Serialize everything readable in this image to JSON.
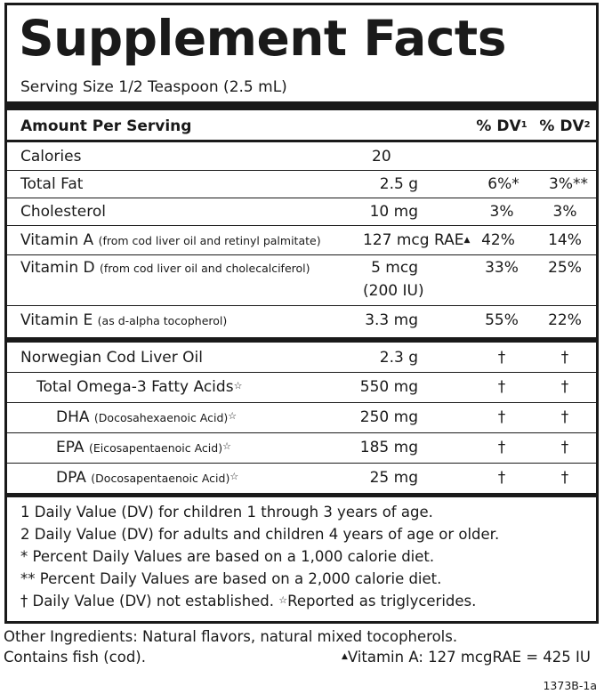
{
  "title": "Supplement Facts",
  "serving_size": "Serving Size 1/2 Teaspoon (2.5 mL)",
  "header": {
    "amount_per_serving": "Amount Per Serving",
    "dv1": "% DV",
    "dv1_sup": "1",
    "dv2": "% DV",
    "dv2_sup": "2"
  },
  "nutrients": [
    {
      "name": "Calories",
      "source": "",
      "amount": "20",
      "amount_line2": "",
      "dv1": "",
      "dv2": ""
    },
    {
      "name": "Total Fat",
      "source": "",
      "amount": "2.5 g",
      "amount_line2": "",
      "dv1": "6%*",
      "dv2": "3%**"
    },
    {
      "name": "Cholesterol",
      "source": "",
      "amount": "10 mg",
      "amount_line2": "",
      "dv1": "3%",
      "dv2": "3%"
    },
    {
      "name": "Vitamin A",
      "source": "(from cod liver oil and retinyl palmitate)",
      "amount": "127 mcg RAE",
      "amount_mark": "▲",
      "amount_line2": "",
      "dv1": "42%",
      "dv2": "14%"
    },
    {
      "name": "Vitamin D",
      "source": "(from cod liver oil and cholecalciferol)",
      "amount": "5 mcg",
      "amount_line2": "(200 IU)",
      "dv1": "33%",
      "dv2": "25%"
    },
    {
      "name": "Vitamin E",
      "source": "(as d-alpha tocopherol)",
      "amount": "3.3 mg",
      "amount_line2": "",
      "dv1": "55%",
      "dv2": "22%"
    }
  ],
  "oils": [
    {
      "name": "Norwegian Cod Liver Oil",
      "source": "",
      "star": "",
      "amount": "2.3 g",
      "dv1": "†",
      "dv2": "†"
    },
    {
      "name": "Total Omega-3 Fatty Acids",
      "source": "",
      "star": "☆",
      "amount": "550 mg",
      "dv1": "†",
      "dv2": "†"
    },
    {
      "name": "DHA",
      "source": "(Docosahexaenoic Acid)",
      "star": "☆",
      "amount": "250 mg",
      "dv1": "†",
      "dv2": "†"
    },
    {
      "name": "EPA",
      "source": "(Eicosapentaenoic Acid)",
      "star": "☆",
      "amount": "185 mg",
      "dv1": "†",
      "dv2": "†"
    },
    {
      "name": "DPA",
      "source": "(Docosapentaenoic Acid)",
      "star": "☆",
      "amount": "25 mg",
      "dv1": "†",
      "dv2": "†"
    }
  ],
  "footnotes": [
    "1 Daily Value (DV) for children 1 through 3 years of age.",
    "2 Daily Value (DV) for adults and children 4 years of age or older.",
    "* Percent Daily Values are based on a 1,000 calorie diet.",
    "** Percent Daily Values are based on a 2,000 calorie diet.",
    "† Daily Value (DV) not established."
  ],
  "triglyceride_note": {
    "star": "☆",
    "text": "Reported as triglycerides."
  },
  "other_ingredients": "Other Ingredients:  Natural flavors, natural mixed tocopherols.",
  "contains": "Contains fish (cod).",
  "vitamin_a_note": {
    "mark": "▲",
    "text": "Vitamin A: 127 mcgRAE = 425 IU"
  },
  "product_code": "1373B-1a"
}
